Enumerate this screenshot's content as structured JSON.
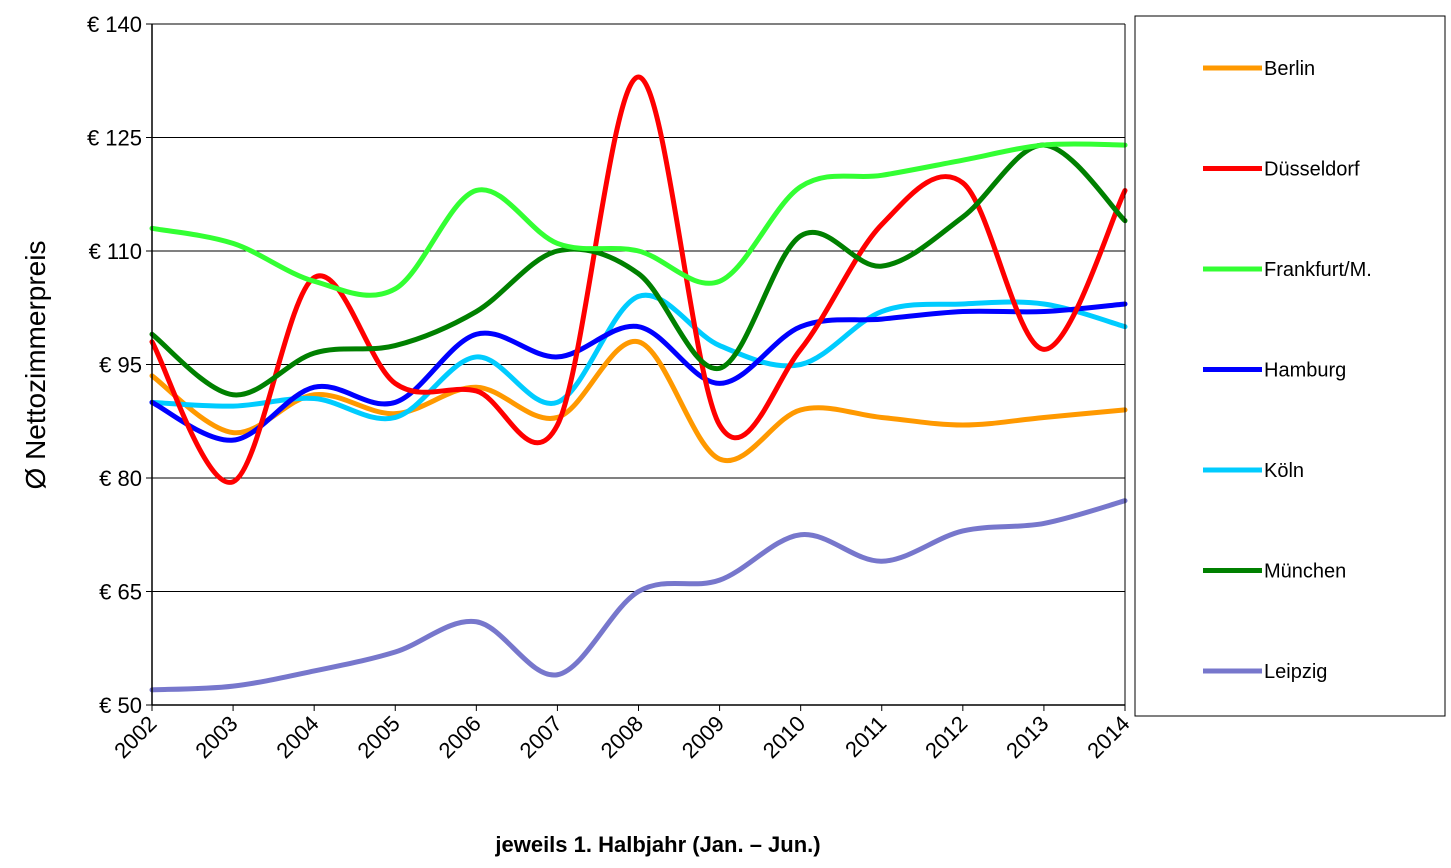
{
  "chart_data": {
    "type": "line",
    "title": "",
    "xlabel": "jeweils 1. Halbjahr (Jan. – Jun.)",
    "ylabel": "Ø Nettozimmerpreis",
    "x": [
      "2002",
      "2003",
      "2004",
      "2005",
      "2006",
      "2007",
      "2008",
      "2009",
      "2010",
      "2011",
      "2012",
      "2013",
      "2014"
    ],
    "ylim": [
      50,
      140
    ],
    "yticks": [
      50,
      65,
      80,
      95,
      110,
      125,
      140
    ],
    "ytick_labels": [
      "€ 50",
      "€ 65",
      "€ 80",
      "€ 95",
      "€ 110",
      "€ 125",
      "€ 140"
    ],
    "grid": "horizontal",
    "legend_position": "right",
    "series": [
      {
        "name": "Berlin",
        "color": "#FF9900",
        "values": [
          93.5,
          86,
          91,
          88.5,
          92,
          88,
          98,
          82.5,
          89,
          88,
          87,
          88,
          89
        ]
      },
      {
        "name": "Düsseldorf",
        "color": "#FF0000",
        "values": [
          98,
          79.5,
          106.5,
          92.5,
          91.5,
          87,
          133,
          87,
          97,
          113.5,
          119,
          97,
          118
        ]
      },
      {
        "name": "Frankfurt/M.",
        "color": "#33FF33",
        "values": [
          113,
          111,
          106,
          105,
          118,
          111,
          110,
          106,
          118.5,
          120,
          122,
          124,
          124
        ]
      },
      {
        "name": "Hamburg",
        "color": "#0000FF",
        "values": [
          90,
          85,
          92,
          90,
          99,
          96,
          100,
          92.5,
          100,
          101,
          102,
          102,
          103
        ]
      },
      {
        "name": "Köln",
        "color": "#00CCFF",
        "values": [
          90,
          89.5,
          90.5,
          88,
          96,
          90,
          104,
          97.5,
          95,
          102,
          103,
          103,
          100
        ]
      },
      {
        "name": "München",
        "color": "#008000",
        "values": [
          99,
          91,
          96.5,
          97.5,
          102,
          110,
          107,
          94.5,
          112,
          108,
          114.5,
          124,
          114
        ]
      },
      {
        "name": "Leipzig",
        "color": "#7777CC",
        "values": [
          52,
          52.5,
          54.5,
          57,
          61,
          54,
          65,
          66.5,
          72.5,
          69,
          73,
          74,
          77
        ]
      }
    ]
  }
}
